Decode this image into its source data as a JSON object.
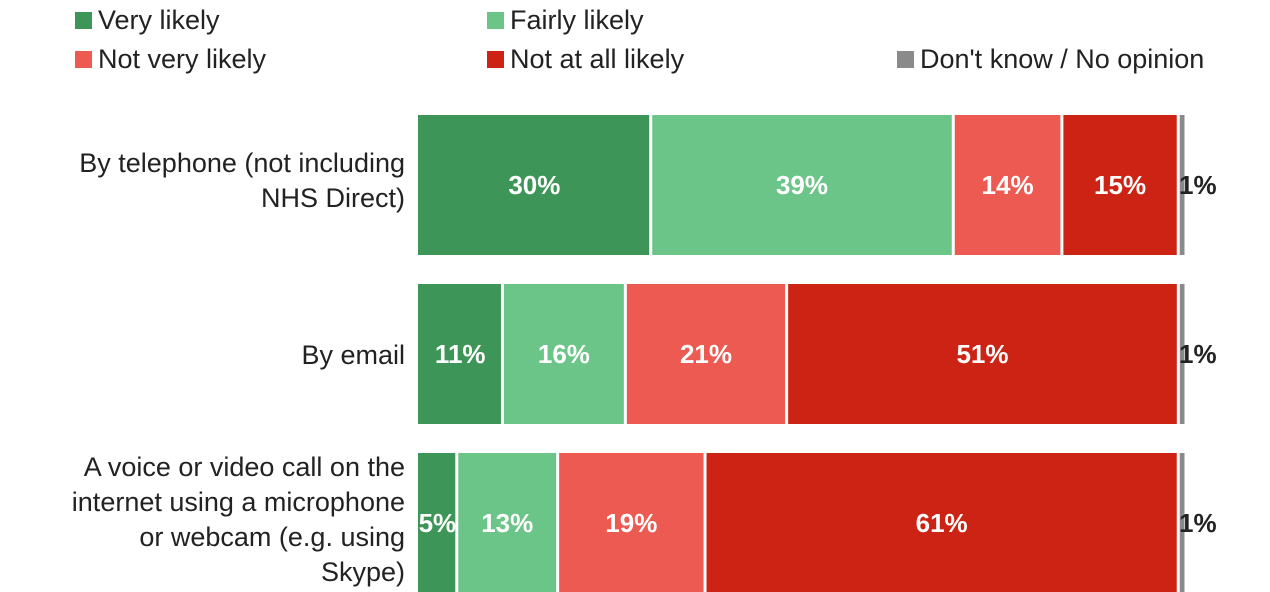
{
  "chart_data": {
    "type": "bar",
    "orientation": "horizontal",
    "stacked": true,
    "normalized": true,
    "legend_position": "top",
    "grid": false,
    "categories": [
      "By telephone (not including NHS Direct)",
      "By email",
      "A voice or video call on the internet using a microphone or webcam (e.g. using Skype)"
    ],
    "series": [
      {
        "name": "Very likely",
        "color": "#3d9657",
        "values": [
          30,
          11,
          5
        ],
        "labels": [
          "30%",
          "11%",
          "5%"
        ]
      },
      {
        "name": "Fairly likely",
        "color": "#6cc588",
        "values": [
          39,
          16,
          13
        ],
        "labels": [
          "39%",
          "16%",
          "13%"
        ]
      },
      {
        "name": "Not very likely",
        "color": "#ec5a51",
        "values": [
          14,
          21,
          19
        ],
        "labels": [
          "14%",
          "21%",
          "19%"
        ]
      },
      {
        "name": "Not at all likely",
        "color": "#cc2314",
        "values": [
          15,
          51,
          61
        ],
        "labels": [
          "15%",
          "51%",
          "61%"
        ]
      },
      {
        "name": "Don't know / No opinion",
        "color": "#8a8a8a",
        "values": [
          1,
          1,
          1
        ],
        "labels": [
          "1%",
          "1%",
          "1%"
        ]
      }
    ]
  }
}
